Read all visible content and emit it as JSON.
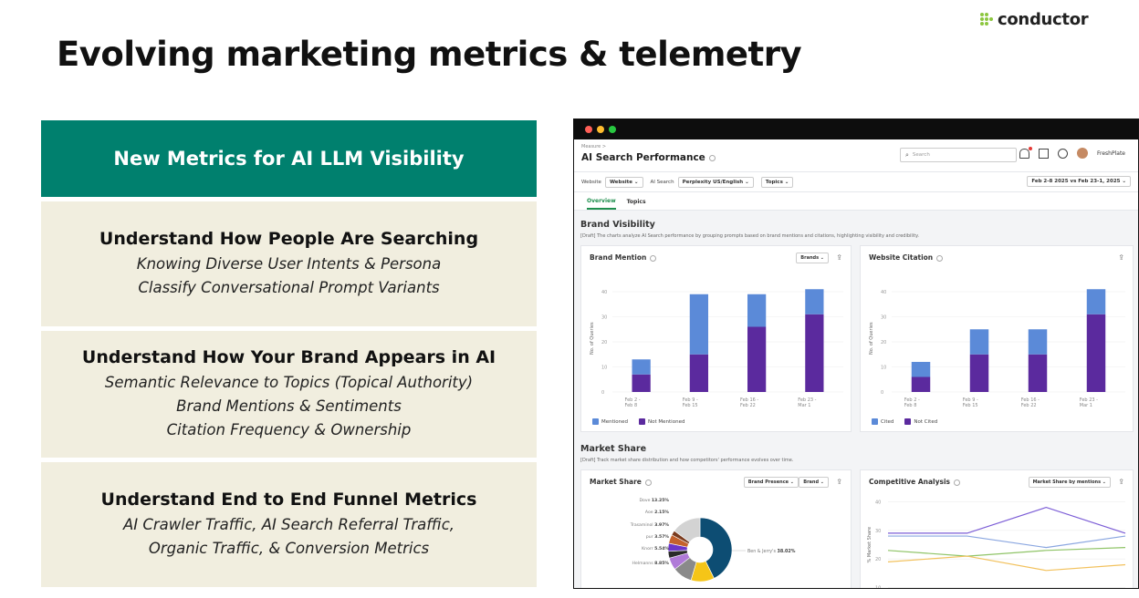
{
  "logo": {
    "text": "conductor"
  },
  "title": "Evolving marketing metrics & telemetry",
  "metrics_header": "New Metrics for AI LLM Visibility",
  "cards": [
    {
      "heading": "Understand How People Are Searching",
      "lines": [
        "Knowing Diverse User Intents & Persona",
        "Classify Conversational Prompt Variants"
      ]
    },
    {
      "heading": "Understand How Your Brand Appears in AI",
      "lines": [
        "Semantic Relevance to Topics (Topical Authority)",
        "Brand Mentions & Sentiments",
        "Citation Frequency & Ownership"
      ]
    },
    {
      "heading": "Understand End to End Funnel Metrics",
      "lines": [
        "AI Crawler Traffic, AI Search Referral Traffic,",
        "Organic Traffic, & Conversion Metrics"
      ]
    }
  ],
  "app": {
    "window_dots": [
      "#ff5f57",
      "#febc2e",
      "#28c840"
    ],
    "breadcrumb": "Measure >",
    "title": "AI Search Performance",
    "search_placeholder": "Search",
    "user": "FreshPlate",
    "filters": {
      "website_label": "Website",
      "website_value": "Website",
      "ai_search_label": "AI Search",
      "ai_search_value": "Perplexity US/English",
      "topics": "Topics",
      "date_range": "Feb 2-8 2025 vs Feb 23-1, 2025"
    },
    "tabs": [
      "Overview",
      "Topics"
    ],
    "brand_visibility": {
      "title": "Brand Visibility",
      "desc": "[Draft] The charts analyze AI Search performance by grouping prompts based on brand mentions and citations, highlighting visibility and credibility."
    },
    "market_share_section": {
      "title": "Market Share",
      "desc": "[Draft] Track market share distribution and how competitors' performance evolves over time."
    },
    "brand_mention_panel": {
      "title": "Brand Mention",
      "dropdown": "Brands"
    },
    "website_citation_panel": {
      "title": "Website Citation"
    },
    "market_share_panel": {
      "title": "Market Share",
      "dropdown1": "Brand Presence",
      "dropdown2": "Brand"
    },
    "competitive_panel": {
      "title": "Competitive Analysis",
      "dropdown": "Market Share by mentions"
    }
  },
  "chart_data": [
    {
      "type": "bar",
      "title": "Brand Mention",
      "ylabel": "No. of Queries",
      "ylim": [
        0,
        40
      ],
      "yticks": [
        0,
        10,
        20,
        30,
        40
      ],
      "categories": [
        [
          "Feb 2 -",
          "Feb 8"
        ],
        [
          "Feb 9 -",
          "Feb 15"
        ],
        [
          "Feb 16 -",
          "Feb 22"
        ],
        [
          "Feb 23 -",
          "Mar 1"
        ]
      ],
      "series": [
        {
          "name": "Not Mentioned",
          "values": [
            7,
            15,
            26,
            31
          ],
          "color": "#5b2a9e"
        },
        {
          "name": "Mentioned",
          "values": [
            6,
            24,
            13,
            10
          ],
          "color": "#5b8ad8"
        }
      ]
    },
    {
      "type": "bar",
      "title": "Website Citation",
      "ylabel": "No. of Queries",
      "ylim": [
        0,
        40
      ],
      "yticks": [
        0,
        10,
        20,
        30,
        40
      ],
      "categories": [
        [
          "Feb 2 -",
          "Feb 8"
        ],
        [
          "Feb 9 -",
          "Feb 15"
        ],
        [
          "Feb 16 -",
          "Feb 22"
        ],
        [
          "Feb 23 -",
          "Mar 1"
        ]
      ],
      "series": [
        {
          "name": "Not Cited",
          "values": [
            6,
            15,
            15,
            31
          ],
          "color": "#5b2a9e"
        },
        {
          "name": "Cited",
          "values": [
            6,
            10,
            10,
            10
          ],
          "color": "#5b8ad8"
        }
      ]
    },
    {
      "type": "pie",
      "title": "Market Share",
      "slices": [
        {
          "name": "Ben & Jerry's",
          "value": 38.02,
          "color": "#0d4d73"
        },
        {
          "name": "",
          "value": 10.5,
          "color": "#f5c518"
        },
        {
          "name": "Helmanns",
          "value": 8.85,
          "color": "#8a8a8a"
        },
        {
          "name": "Knorr",
          "value": 5.54,
          "color": "#b07ad8"
        },
        {
          "name": "",
          "value": 3.08,
          "color": "#2a2a2a"
        },
        {
          "name": "pur",
          "value": 3.57,
          "color": "#6c36c9"
        },
        {
          "name": "Trasaminol",
          "value": 3.97,
          "color": "#c4622d"
        },
        {
          "name": "Aoe",
          "value": 2.15,
          "color": "#7a3b1e"
        },
        {
          "name": "Dove",
          "value": 13.25,
          "color": "#d3d3d3"
        }
      ],
      "labels": [
        {
          "text": "Dove",
          "pct": "13.25%"
        },
        {
          "text": "Aoe",
          "pct": "2.15%"
        },
        {
          "text": "Trasaminol",
          "pct": "3.97%"
        },
        {
          "text": "pur",
          "pct": "3.57%"
        },
        {
          "text": "Knorr",
          "pct": "5.54%"
        },
        {
          "text": "Helmanns",
          "pct": "8.85%"
        },
        {
          "text": "Ben & Jerry's",
          "pct": "38.02%"
        }
      ]
    },
    {
      "type": "line",
      "title": "Competitive Analysis",
      "ylabel": "% Market Share",
      "ylim": [
        8,
        42
      ],
      "yticks": [
        10,
        20,
        30,
        40
      ],
      "x": [
        0,
        1,
        2,
        3
      ],
      "series": [
        {
          "values": [
            29,
            29,
            38,
            29
          ],
          "color": "#7b5cd6"
        },
        {
          "values": [
            28,
            28,
            24,
            28
          ],
          "color": "#8aa6e0"
        },
        {
          "values": [
            23,
            21,
            23,
            24
          ],
          "color": "#8fc467"
        },
        {
          "values": [
            19,
            21,
            16,
            18
          ],
          "color": "#f2c15c"
        }
      ]
    }
  ]
}
